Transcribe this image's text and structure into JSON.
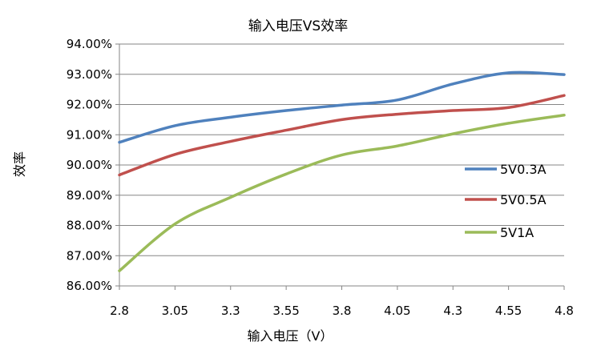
{
  "chart_data": {
    "type": "line",
    "title": "输入电压VS效率",
    "xlabel": "输入电压（V）",
    "ylabel": "效率",
    "x": [
      2.8,
      3.05,
      3.3,
      3.55,
      3.8,
      4.05,
      4.3,
      4.55,
      4.8
    ],
    "x_tick_labels": [
      "2.8",
      "3.05",
      "3.3",
      "3.55",
      "3.8",
      "4.05",
      "4.3",
      "4.55",
      "4.8"
    ],
    "y_ticks": [
      86,
      87,
      88,
      89,
      90,
      91,
      92,
      93,
      94
    ],
    "y_tick_labels": [
      "86.00%",
      "87.00%",
      "88.00%",
      "89.00%",
      "90.00%",
      "91.00%",
      "92.00%",
      "93.00%",
      "94.00%"
    ],
    "xlim": [
      2.8,
      4.8
    ],
    "ylim": [
      86,
      94
    ],
    "grid": "horizontal",
    "legend_position": "right",
    "series": [
      {
        "name": "5V0.3A",
        "color": "#4F81BD",
        "values": [
          90.75,
          91.3,
          91.58,
          91.8,
          91.98,
          92.15,
          92.68,
          93.05,
          92.99
        ]
      },
      {
        "name": "5V0.5A",
        "color": "#C0504D",
        "values": [
          89.67,
          90.35,
          90.78,
          91.15,
          91.5,
          91.68,
          91.8,
          91.9,
          92.3
        ]
      },
      {
        "name": "5V1A",
        "color": "#9BBB59",
        "values": [
          86.5,
          88.05,
          88.93,
          89.7,
          90.33,
          90.63,
          91.03,
          91.38,
          91.65
        ]
      }
    ]
  }
}
